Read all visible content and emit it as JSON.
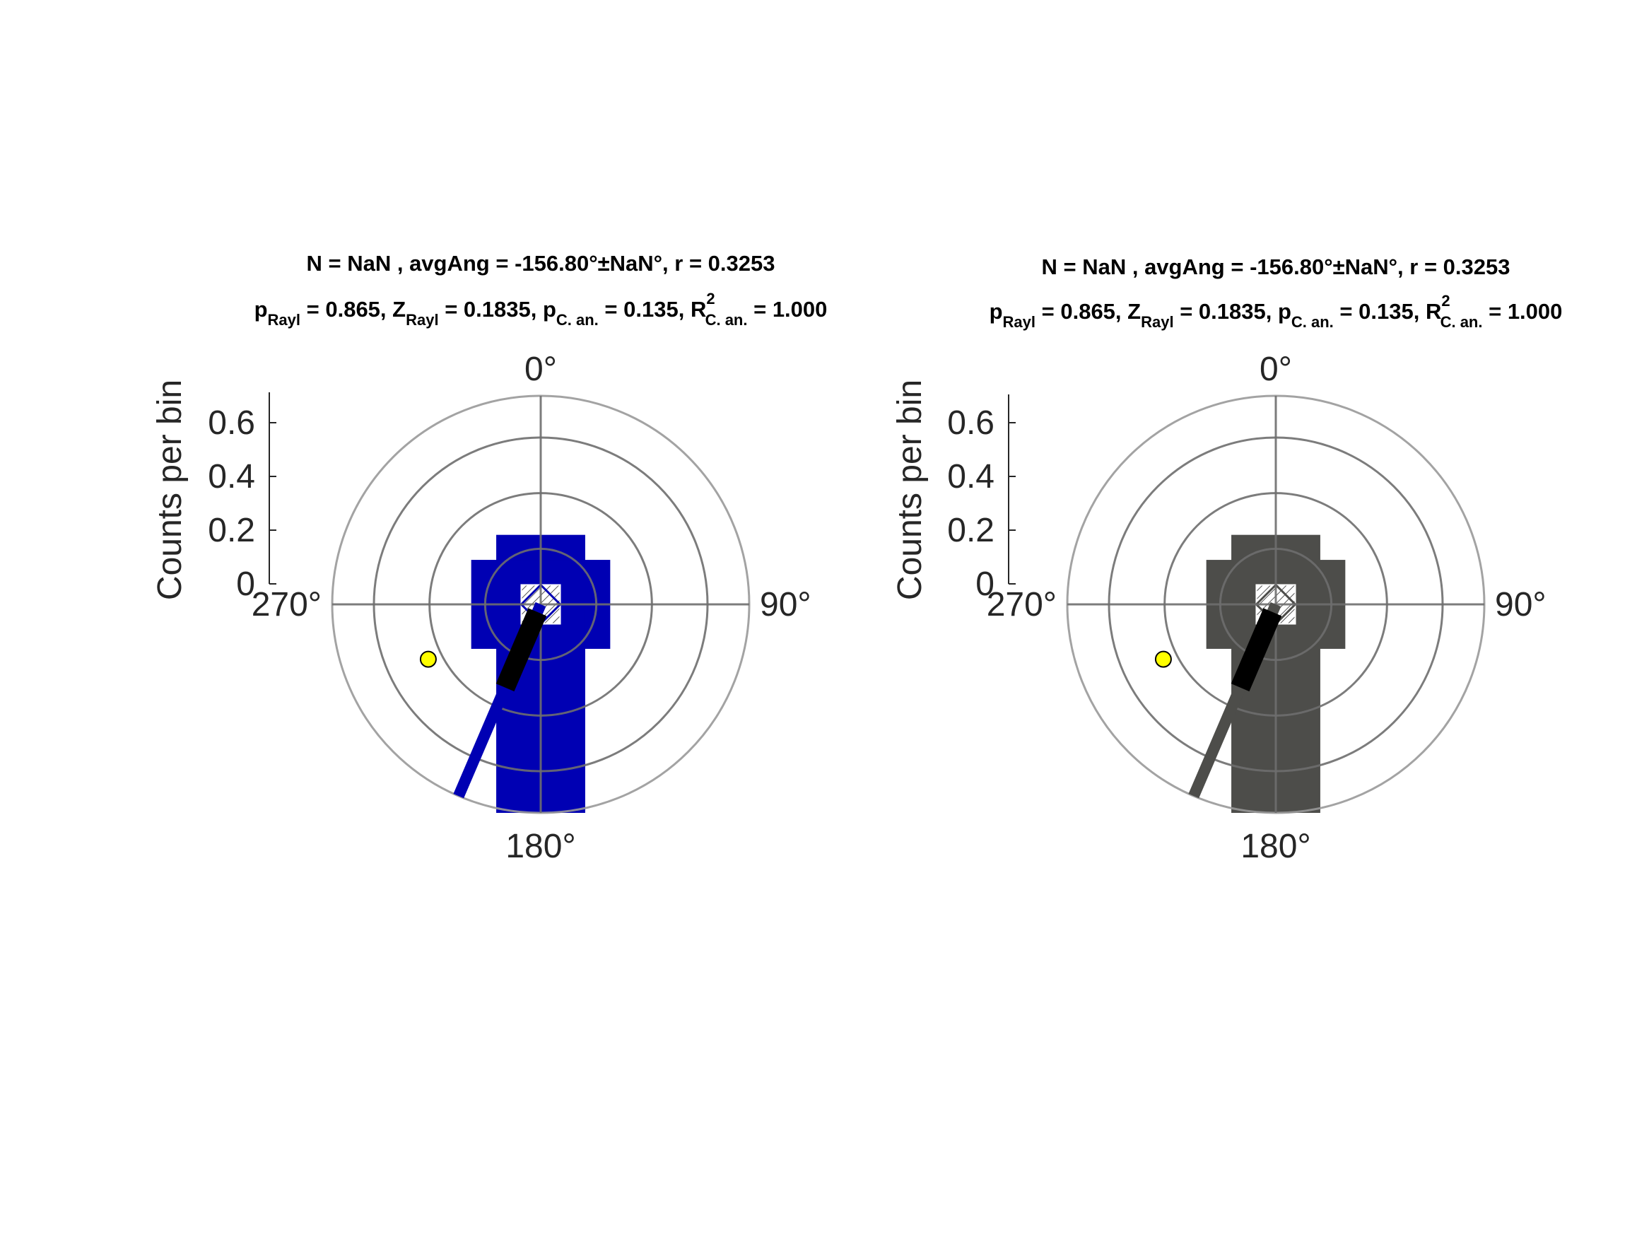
{
  "chart_data": [
    {
      "type": "polar-histogram",
      "title_line1": "N = NaN , avgAng = -156.80°±NaN°, r = 0.3253",
      "title_line2": {
        "p_rayl_label": "p",
        "p_rayl_sub": "Rayl",
        "p_rayl_value": " = 0.865, ",
        "z_rayl_label": "Z",
        "z_rayl_sub": "Rayl",
        "z_rayl_value": " = 0.1835, ",
        "p_can_label": "p",
        "p_can_sub": "C. an.",
        "p_can_value": " = 0.135, ",
        "r2_label": "R",
        "r2_sup": "2",
        "r2_sub": "C. an.",
        "r2_value": " = 1.000"
      },
      "ylabel": "Counts per bin",
      "y_ticks": [
        "0",
        "0.2",
        "0.4",
        "0.6"
      ],
      "y_tick_values": [
        0,
        0.2,
        0.4,
        0.6
      ],
      "rlim": [
        0,
        0.75
      ],
      "angle_labels": {
        "north": "0°",
        "east": "90°",
        "south": "180°",
        "west": "270°"
      },
      "ring_values": [
        0.2,
        0.4,
        0.6,
        0.75
      ],
      "bars": [
        {
          "angle_deg": 0,
          "value": 0.25
        },
        {
          "angle_deg": 90,
          "value": 0.25
        },
        {
          "angle_deg": 180,
          "value": 0.75
        },
        {
          "angle_deg": 270,
          "value": 0.25
        }
      ],
      "mean_vector": {
        "angle_deg": 203.2,
        "length": 0.3253
      },
      "avg_line": {
        "angle_deg": 203.2,
        "length": 0.75
      },
      "marker": {
        "angle_deg": 244,
        "radius": 0.45,
        "color": "#ffff00"
      },
      "bar_color": "#0000b3",
      "vector_color": "#000000",
      "grid_color": "#808080"
    },
    {
      "type": "polar-histogram",
      "title_line1": "N = NaN , avgAng = -156.80°±NaN°, r = 0.3253",
      "title_line2": {
        "p_rayl_label": "p",
        "p_rayl_sub": "Rayl",
        "p_rayl_value": " = 0.865, ",
        "z_rayl_label": "Z",
        "z_rayl_sub": "Rayl",
        "z_rayl_value": " = 0.1835, ",
        "p_can_label": "p",
        "p_can_sub": "C. an.",
        "p_can_value": " = 0.135, ",
        "r2_label": "R",
        "r2_sup": "2",
        "r2_sub": "C. an.",
        "r2_value": " = 1.000"
      },
      "ylabel": "Counts per bin",
      "y_ticks": [
        "0",
        "0.2",
        "0.4",
        "0.6"
      ],
      "y_tick_values": [
        0,
        0.2,
        0.4,
        0.6
      ],
      "rlim": [
        0,
        0.75
      ],
      "angle_labels": {
        "north": "0°",
        "east": "90°",
        "south": "180°",
        "west": "270°"
      },
      "ring_values": [
        0.2,
        0.4,
        0.6,
        0.75
      ],
      "bars": [
        {
          "angle_deg": 0,
          "value": 0.25
        },
        {
          "angle_deg": 90,
          "value": 0.25
        },
        {
          "angle_deg": 180,
          "value": 0.75
        },
        {
          "angle_deg": 270,
          "value": 0.25
        }
      ],
      "mean_vector": {
        "angle_deg": 203.2,
        "length": 0.3253
      },
      "avg_line": {
        "angle_deg": 203.2,
        "length": 0.75
      },
      "marker": {
        "angle_deg": 244,
        "radius": 0.45,
        "color": "#ffff00"
      },
      "bar_color": "#4d4d4a",
      "vector_color": "#000000",
      "grid_color": "#808080"
    }
  ]
}
